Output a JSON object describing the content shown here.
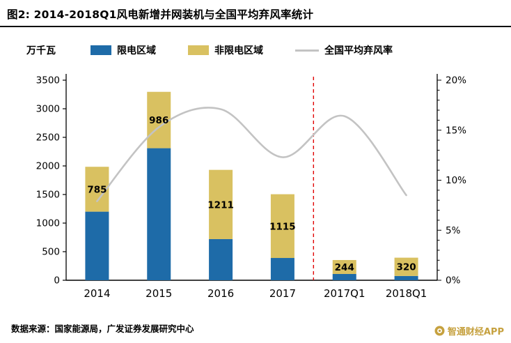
{
  "header": {
    "title": "图2: 2014-2018Q1风电新增并网装机与全国平均弃风率统计"
  },
  "chart_data": {
    "type": "bar",
    "subtype": "stacked-bars-with-line-overlay",
    "unit_label": "万千瓦",
    "categories": [
      "2014",
      "2015",
      "2016",
      "2017",
      "2017Q1",
      "2018Q1"
    ],
    "series": [
      {
        "name": "限电区域",
        "type": "bar",
        "stack": "capacity",
        "color": "#1e6ba8",
        "values": [
          1200,
          2310,
          720,
          390,
          110,
          75
        ]
      },
      {
        "name": "非限电区域",
        "type": "bar",
        "stack": "capacity",
        "color": "#d9c161",
        "values": [
          785,
          986,
          1211,
          1115,
          244,
          320
        ]
      },
      {
        "name": "全国平均弃风率",
        "type": "line",
        "axis": "right",
        "color": "#c3c3c3",
        "values": [
          7.9,
          15.3,
          17.1,
          12.3,
          16.4,
          8.5
        ]
      }
    ],
    "bar_labels": [
      "785",
      "986",
      "1211",
      "1115",
      "244",
      "320"
    ],
    "left_axis": {
      "min": 0,
      "max": 3500,
      "step": 500,
      "ticks": [
        "0",
        "500",
        "1000",
        "1500",
        "2000",
        "2500",
        "3000",
        "3500"
      ]
    },
    "right_axis": {
      "min": 0,
      "max": 20,
      "step": 5,
      "ticks": [
        "0%",
        "5%",
        "10%",
        "15%",
        "20%"
      ]
    },
    "divider": {
      "style": "red-dashed-vertical",
      "after_category": "2017",
      "color": "#e00000"
    },
    "legend_position": "top",
    "grid": false
  },
  "footer": {
    "source": "数据来源：国家能源局，广发证券发展研究中心"
  },
  "watermark": {
    "text": "智通财经APP",
    "color": "#c6a13f"
  }
}
